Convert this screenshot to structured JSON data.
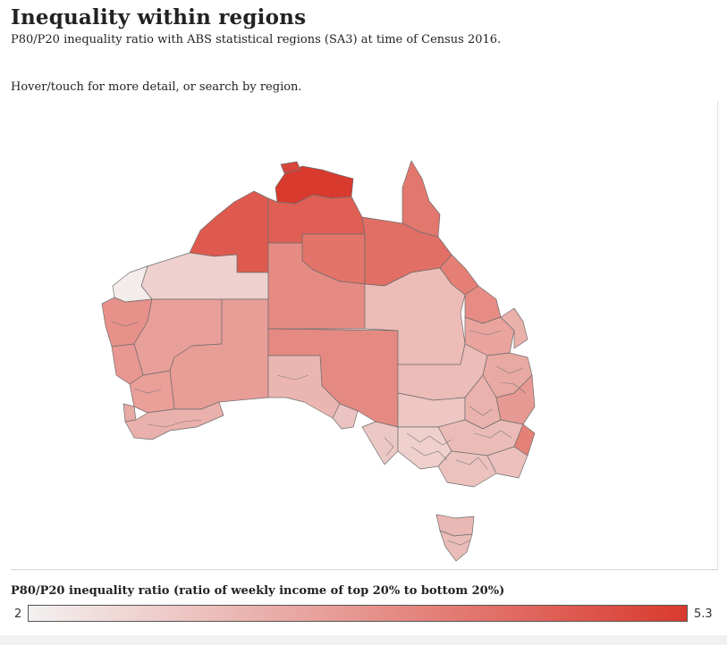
{
  "header": {
    "title": "Inequality within regions",
    "subtitle": "P80/P20 inequality ratio with ABS statistical regions (SA3) at time of Census 2016.",
    "hint": "Hover/touch for more detail, or search by region."
  },
  "legend": {
    "title": "P80/P20 inequality ratio (ratio of weekly income of top 20% to bottom 20%)",
    "min_label": "2",
    "max_label": "5.3",
    "min_value": 2,
    "max_value": 5.3,
    "color_low": "#f3f1f1",
    "color_high": "#d93a2e"
  },
  "map": {
    "country": "Australia",
    "region_type": "SA3"
  }
}
